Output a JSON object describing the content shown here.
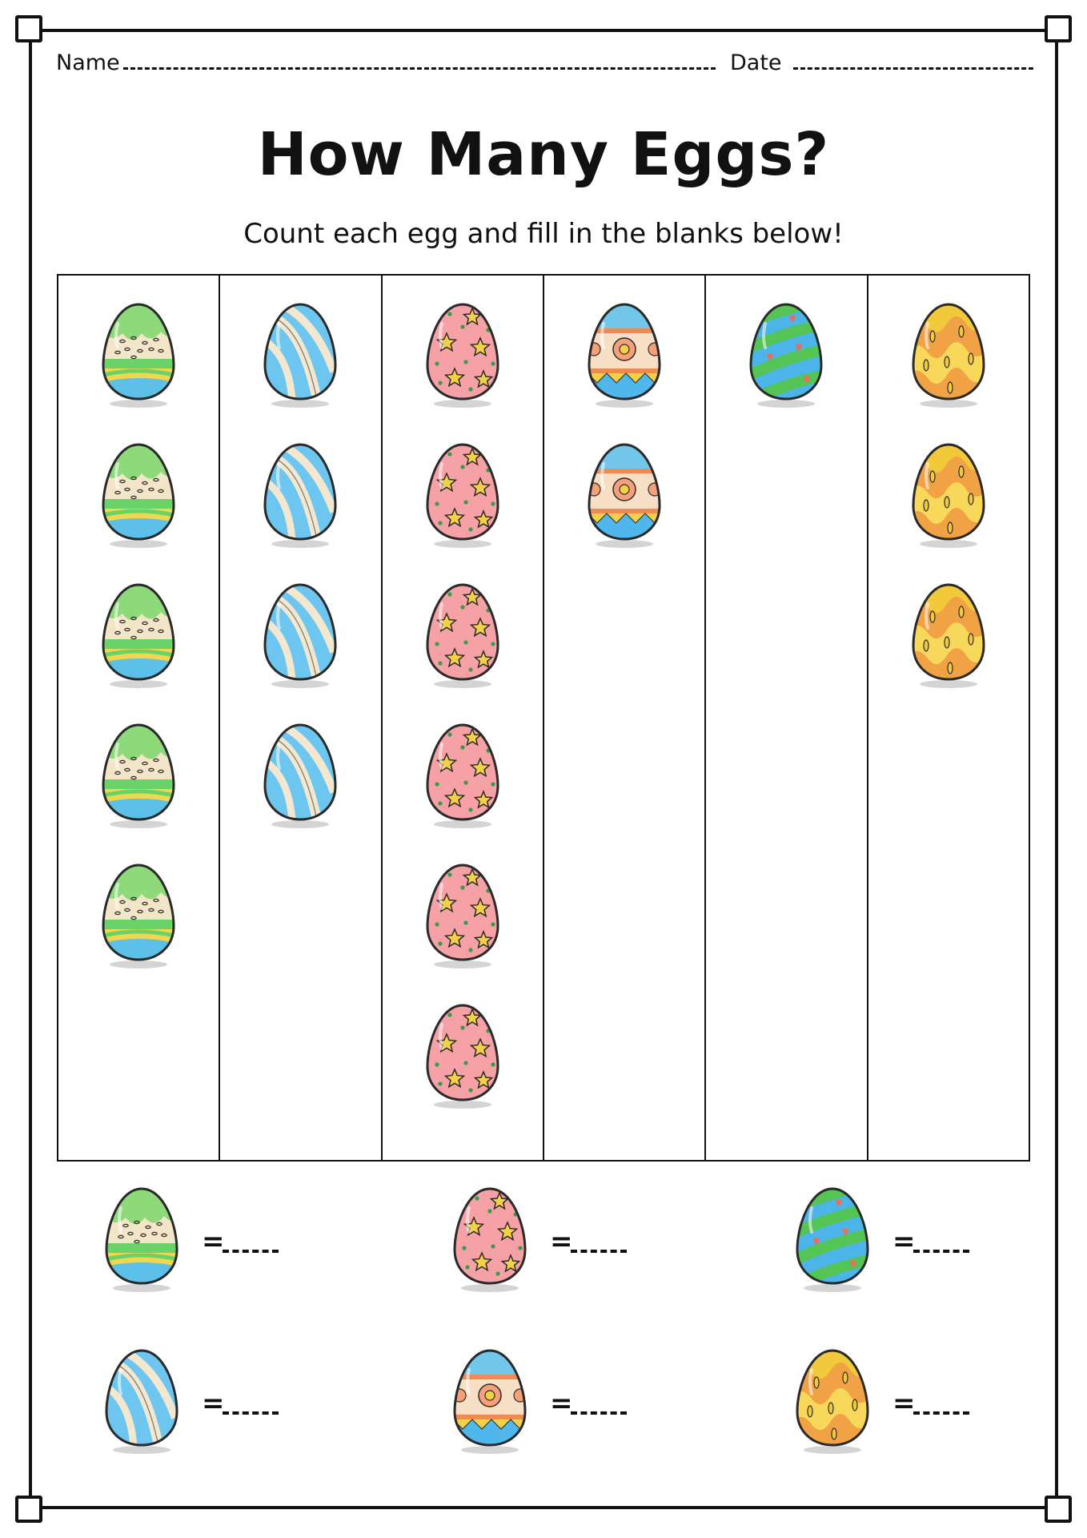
{
  "header": {
    "name_label": "Name",
    "date_label": "Date"
  },
  "title": "How Many Eggs?",
  "subtitle": "Count each egg and fill in the blanks below!",
  "egg_types": {
    "confetti": {
      "icon": "green-confetti-egg-icon",
      "top": "#8ed97a",
      "band": "#f3e6c8",
      "stripe": "#69d36a",
      "bottom": "#f2d64b",
      "base": "#5cc0e8"
    },
    "swirl": {
      "icon": "blue-swirl-egg-icon",
      "top": "#6cc6ef",
      "band": "#f3e8cf",
      "stripe": "#4fb3e6",
      "bottom": "#9ddcf5",
      "base": "#6cc6ef"
    },
    "star": {
      "icon": "pink-star-egg-icon",
      "top": "#f6a1a6",
      "band": "#f49aa0",
      "stripe": "#f2d04a",
      "bottom": "#f6a1a6",
      "base": "#f6a1a6"
    },
    "flower": {
      "icon": "flower-band-egg-icon",
      "top": "#72c6ea",
      "band": "#f6dfc4",
      "stripe": "#f08a55",
      "bottom": "#4fb7ec",
      "base": "#4fb7ec"
    },
    "heart": {
      "icon": "green-heart-egg-icon",
      "top": "#4cb4e8",
      "band": "#54c454",
      "stripe": "#ef6b5a",
      "bottom": "#54c454",
      "base": "#4cb4e8"
    },
    "drip": {
      "icon": "orange-drip-egg-icon",
      "top": "#f3c93c",
      "band": "#f0a245",
      "stripe": "#f7d85a",
      "bottom": "#f0a245",
      "base": "#f3c93c"
    }
  },
  "columns": [
    {
      "type": "confetti",
      "count": 5
    },
    {
      "type": "swirl",
      "count": 4
    },
    {
      "type": "star",
      "count": 6
    },
    {
      "type": "flower",
      "count": 2
    },
    {
      "type": "heart",
      "count": 1
    },
    {
      "type": "drip",
      "count": 3
    }
  ],
  "answers": [
    {
      "type": "confetti",
      "equals": "="
    },
    {
      "type": "star",
      "equals": "="
    },
    {
      "type": "heart",
      "equals": "="
    },
    {
      "type": "swirl",
      "equals": "="
    },
    {
      "type": "flower",
      "equals": "="
    },
    {
      "type": "drip",
      "equals": "="
    }
  ]
}
